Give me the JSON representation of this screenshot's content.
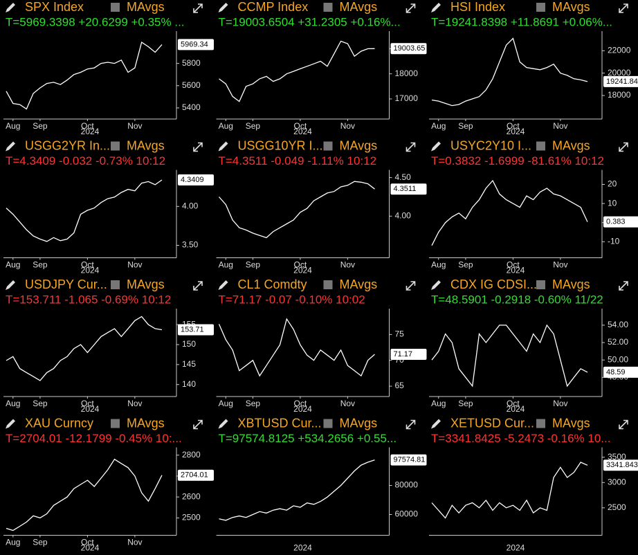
{
  "chart_data": [
    {
      "type": "line",
      "title": "SPX Index",
      "studies": "MAvgs",
      "quote": "T=5969.3398 +20.6299 +0.35% ...",
      "quote_color": "#33dd33",
      "categories": [
        null,
        "Aug",
        null,
        null,
        null,
        "Sep",
        null,
        null,
        null,
        null,
        null,
        null,
        "Oct",
        null,
        null,
        null,
        null,
        null,
        null,
        "Nov",
        null,
        null,
        null,
        null
      ],
      "xlabel": "2024",
      "values": [
        5550,
        5440,
        5430,
        5390,
        5530,
        5580,
        5620,
        5630,
        5610,
        5650,
        5700,
        5720,
        5750,
        5760,
        5800,
        5810,
        5800,
        5830,
        5720,
        5760,
        5990,
        5950,
        5900,
        5969.34
      ],
      "last_label": "5969.34",
      "ylim": [
        5300,
        6090
      ],
      "yticks": [
        5400,
        5600,
        5800
      ],
      "color": "#ffffff"
    },
    {
      "type": "line",
      "title": "CCMP Index",
      "studies": "MAvgs",
      "quote": "T=19003.6504 +31.2305 +0.16%...",
      "quote_color": "#33dd33",
      "categories": [
        null,
        "Aug",
        null,
        null,
        null,
        "Sep",
        null,
        null,
        null,
        null,
        null,
        null,
        "Oct",
        null,
        null,
        null,
        null,
        null,
        null,
        "Nov",
        null,
        null,
        null,
        null
      ],
      "xlabel": "2024",
      "values": [
        17800,
        17600,
        17100,
        16900,
        17500,
        17600,
        17800,
        17900,
        17700,
        17800,
        18000,
        18100,
        18200,
        18300,
        18400,
        18500,
        18300,
        18800,
        19300,
        19200,
        18700,
        18900,
        19000,
        19003.65
      ],
      "last_label": "19003.65",
      "ylim": [
        16200,
        19700
      ],
      "yticks": [
        17000,
        18000,
        19000
      ],
      "color": "#ffffff"
    },
    {
      "type": "line",
      "title": "HSI Index",
      "studies": "MAvgs",
      "quote": "T=19241.8398 +11.8691 +0.06%...",
      "quote_color": "#33dd33",
      "categories": [
        null,
        "Aug",
        null,
        null,
        null,
        "Sep",
        null,
        null,
        null,
        null,
        null,
        null,
        "Oct",
        null,
        null,
        null,
        null,
        null,
        null,
        "Nov",
        null,
        null,
        null,
        null
      ],
      "xlabel": "2024",
      "values": [
        17600,
        17500,
        17300,
        17100,
        17200,
        17500,
        17700,
        17900,
        18500,
        19500,
        21000,
        22500,
        23100,
        21000,
        20500,
        20400,
        20300,
        20500,
        20800,
        20000,
        19800,
        19500,
        19400,
        19241.84
      ],
      "last_label": "19241.84",
      "ylim": [
        15900,
        23750
      ],
      "yticks": [
        18000,
        20000,
        22000
      ],
      "color": "#ffffff"
    },
    {
      "type": "line",
      "title": "USGG2YR In...",
      "studies": "MAvgs",
      "quote": "T=4.3409 -0.032 -0.73% 10:12",
      "quote_color": "#ff3333",
      "categories": [
        null,
        "Aug",
        null,
        null,
        null,
        "Sep",
        null,
        null,
        null,
        null,
        null,
        null,
        "Oct",
        null,
        null,
        null,
        null,
        null,
        null,
        "Nov",
        null,
        null,
        null,
        null
      ],
      "xlabel": "2024",
      "values": [
        3.98,
        3.9,
        3.8,
        3.7,
        3.62,
        3.58,
        3.55,
        3.6,
        3.56,
        3.58,
        3.66,
        3.9,
        3.95,
        3.98,
        4.05,
        4.1,
        4.12,
        4.18,
        4.22,
        4.2,
        4.3,
        4.32,
        4.28,
        4.3409
      ],
      "last_label": "4.3409",
      "ylim": [
        3.34,
        4.47
      ],
      "yticks": [
        {
          "value": 3.5,
          "label": "3.50"
        },
        {
          "value": 4,
          "label": "4.00"
        }
      ],
      "color": "#ffffff"
    },
    {
      "type": "line",
      "title": "USGG10YR I...",
      "studies": "MAvgs",
      "quote": "T=4.3511 -0.049 -1.11% 10:12",
      "quote_color": "#ff3333",
      "categories": [
        null,
        "Aug",
        null,
        null,
        null,
        "Sep",
        null,
        null,
        null,
        null,
        null,
        null,
        "Oct",
        null,
        null,
        null,
        null,
        null,
        null,
        "Nov",
        null,
        null,
        null,
        null
      ],
      "xlabel": "2024",
      "values": [
        4.25,
        4.15,
        3.95,
        3.85,
        3.82,
        3.78,
        3.75,
        3.72,
        3.8,
        3.85,
        3.9,
        3.95,
        4.05,
        4.1,
        4.2,
        4.25,
        4.3,
        4.32,
        4.38,
        4.4,
        4.45,
        4.44,
        4.42,
        4.3511
      ],
      "last_label": "4.3511",
      "ylim": [
        3.46,
        4.6
      ],
      "yticks": [
        {
          "value": 4,
          "label": "4.00"
        },
        {
          "value": 4.5,
          "label": "4.50"
        }
      ],
      "color": "#ffffff"
    },
    {
      "type": "line",
      "title": "USYC2Y10 I...",
      "studies": "MAvgs",
      "quote": "T=0.3832 -1.6999 -81.61% 10:12",
      "quote_color": "#ff3333",
      "categories": [
        null,
        "Aug",
        null,
        null,
        null,
        "Sep",
        null,
        null,
        null,
        null,
        null,
        null,
        "Oct",
        null,
        null,
        null,
        null,
        null,
        null,
        "Nov",
        null,
        null,
        null,
        null
      ],
      "xlabel": "2024",
      "values": [
        -12,
        -5,
        0,
        3,
        5,
        2,
        8,
        12,
        18,
        22,
        15,
        12,
        10,
        8,
        14,
        12,
        16,
        18,
        15,
        14,
        12,
        10,
        8,
        0.383
      ],
      "last_label": "0.383",
      "ylim": [
        -18.4,
        27.6
      ],
      "yticks": [
        -10,
        0,
        10,
        20
      ],
      "color": "#ffffff"
    },
    {
      "type": "line",
      "title": "USDJPY Cur...",
      "studies": "MAvgs",
      "quote": "T=153.711 -1.065 -0.69% 10:12",
      "quote_color": "#ff3333",
      "categories": [
        null,
        "Aug",
        null,
        null,
        null,
        "Sep",
        null,
        null,
        null,
        null,
        null,
        null,
        "Oct",
        null,
        null,
        null,
        null,
        null,
        null,
        "Nov",
        null,
        null,
        null,
        null
      ],
      "xlabel": "2024",
      "values": [
        146,
        147,
        144,
        143,
        142,
        141,
        143,
        144,
        146,
        147,
        149,
        150,
        148,
        150,
        152,
        153,
        154,
        152,
        154,
        156,
        157,
        155,
        154,
        153.71
      ],
      "last_label": "153.71",
      "ylim": [
        137,
        159
      ],
      "yticks": [
        140,
        145,
        150,
        155
      ],
      "color": "#ffffff"
    },
    {
      "type": "line",
      "title": "CL1 Comdty",
      "studies": "MAvgs",
      "quote": "T=71.17 -0.07 -0.10% 10:02",
      "quote_color": "#ff3333",
      "categories": [
        null,
        "Aug",
        null,
        null,
        null,
        "Sep",
        null,
        null,
        null,
        null,
        null,
        null,
        "Oct",
        null,
        null,
        null,
        null,
        null,
        null,
        "Nov",
        null,
        null,
        null,
        null
      ],
      "xlabel": "2024",
      "values": [
        77,
        74,
        72,
        68,
        69,
        70,
        67,
        69,
        71,
        73,
        78,
        76,
        73,
        71,
        70,
        72,
        71,
        70,
        72,
        69,
        68,
        67,
        70,
        71.17
      ],
      "last_label": "71.17",
      "ylim": [
        63,
        80
      ],
      "yticks": [
        65,
        70,
        75
      ],
      "color": "#ffffff"
    },
    {
      "type": "line",
      "title": "CDX IG CDSI...",
      "studies": "MAvgs",
      "quote": "T=48.5901 -0.2918 -0.60% 11/22",
      "quote_color": "#33dd33",
      "categories": [
        null,
        "Aug",
        null,
        null,
        null,
        "Sep",
        null,
        null,
        null,
        null,
        null,
        null,
        "Oct",
        null,
        null,
        null,
        null,
        null,
        null,
        "Nov",
        null,
        null,
        null,
        null
      ],
      "xlabel": "2024",
      "values": [
        50,
        51,
        53,
        52,
        49,
        48,
        47,
        53,
        52,
        53,
        54,
        54,
        53,
        52,
        51,
        53,
        52,
        54,
        53,
        50,
        47,
        48,
        49,
        48.59
      ],
      "last_label": "48.59",
      "ylim": [
        45.8,
        55.9
      ],
      "yticks": [
        {
          "value": 48,
          "label": "48.00"
        },
        {
          "value": 50,
          "label": "50.00"
        },
        {
          "value": 52,
          "label": "52.00"
        },
        {
          "value": 54,
          "label": "54.00"
        }
      ],
      "color": "#ffffff"
    },
    {
      "type": "line",
      "title": "XAU Curncy",
      "studies": "MAvgs",
      "quote": "T=2704.01 -12.1799 -0.45% 10:...",
      "quote_color": "#ff3333",
      "categories": [
        null,
        "Aug",
        null,
        null,
        null,
        "Sep",
        null,
        null,
        null,
        null,
        null,
        null,
        "Oct",
        null,
        null,
        null,
        null,
        null,
        null,
        "Nov",
        null,
        null,
        null,
        null
      ],
      "xlabel": "2024",
      "values": [
        2450,
        2440,
        2460,
        2480,
        2510,
        2500,
        2520,
        2560,
        2580,
        2600,
        2640,
        2660,
        2680,
        2650,
        2690,
        2730,
        2780,
        2760,
        2740,
        2700,
        2620,
        2580,
        2640,
        2704.01
      ],
      "last_label": "2704.01",
      "ylim": [
        2417,
        2837
      ],
      "yticks": [
        2500,
        2600,
        2700,
        2800
      ],
      "color": "#ffffff"
    },
    {
      "type": "line",
      "title": "XBTUSD Cur...",
      "studies": "MAvgs",
      "quote": "T=97574.8125 +534.2656 +0.55...",
      "quote_color": "#33dd33",
      "categories": [
        null,
        null,
        null,
        null,
        null,
        null,
        null,
        null,
        null,
        null,
        null,
        null,
        null,
        null,
        null,
        null,
        null,
        null,
        null,
        null,
        null,
        null,
        null,
        null
      ],
      "xlabel": "2024",
      "values": [
        57000,
        56000,
        58000,
        59000,
        58000,
        60000,
        62000,
        61000,
        63000,
        64000,
        63000,
        66000,
        65000,
        68000,
        67000,
        69000,
        72000,
        76000,
        80000,
        85000,
        90000,
        94000,
        96000,
        97574.81
      ],
      "last_label": "97574.81",
      "ylim": [
        45714,
        106190
      ],
      "yticks": [
        60000,
        80000
      ],
      "color": "#ffffff"
    },
    {
      "type": "line",
      "title": "XETUSD Cur...",
      "studies": "MAvgs",
      "quote": "T=3341.8425 -5.2473 -0.16% 10...",
      "quote_color": "#ff3333",
      "categories": [
        null,
        null,
        null,
        null,
        null,
        null,
        null,
        null,
        null,
        null,
        null,
        null,
        null,
        null,
        null,
        null,
        null,
        null,
        null,
        null,
        null,
        null,
        null,
        null
      ],
      "xlabel": "2024",
      "values": [
        2600,
        2450,
        2300,
        2550,
        2400,
        2550,
        2600,
        2500,
        2650,
        2450,
        2600,
        2500,
        2550,
        2450,
        2650,
        2400,
        2500,
        2450,
        3100,
        3300,
        3100,
        3200,
        3400,
        3341.843
      ],
      "last_label": "3341.843",
      "ylim": [
        1958,
        3694
      ],
      "yticks": [
        2500,
        3000,
        3500
      ],
      "color": "#ffffff"
    }
  ]
}
